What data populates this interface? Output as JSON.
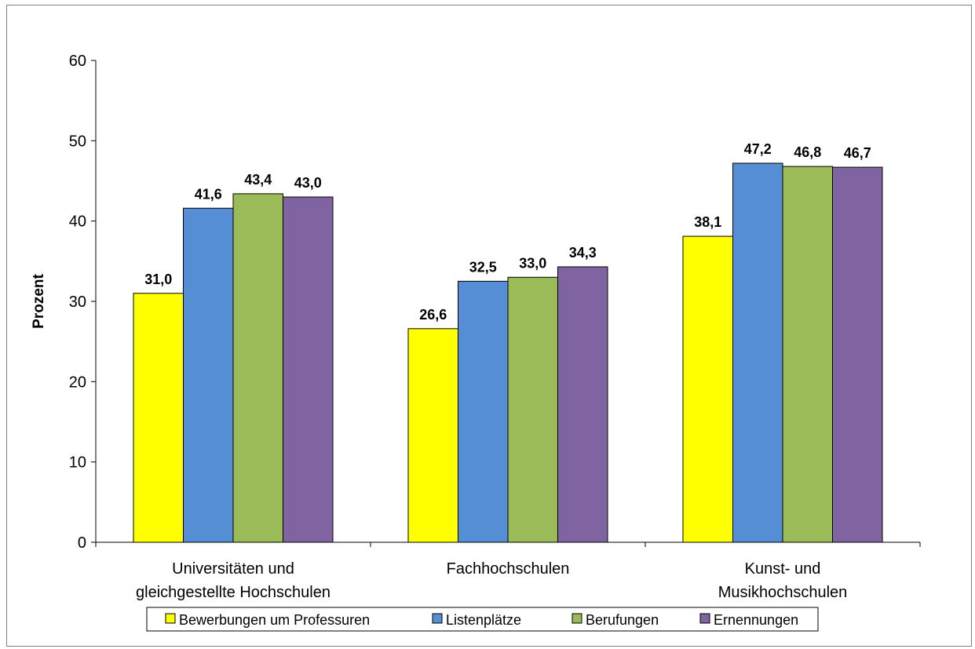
{
  "chart_data": {
    "type": "bar",
    "ylabel": "Prozent",
    "xlabel": "",
    "ylim": [
      0,
      60
    ],
    "yticks": [
      0,
      10,
      20,
      30,
      40,
      50,
      60
    ],
    "grid": false,
    "legend_position": "bottom",
    "categories": [
      [
        "Universitäten und",
        "gleichgestellte Hochschulen"
      ],
      [
        "Fachhochschulen"
      ],
      [
        "Kunst- und",
        "Musikhochschulen"
      ]
    ],
    "series": [
      {
        "name": "Bewerbungen um Professuren",
        "color": "#FFFF00",
        "values": [
          31.0,
          26.6,
          38.1
        ],
        "labels": [
          "31,0",
          "26,6",
          "38,1"
        ]
      },
      {
        "name": "Listenplätze",
        "color": "#558ED5",
        "values": [
          41.6,
          32.5,
          47.2
        ],
        "labels": [
          "41,6",
          "32,5",
          "47,2"
        ]
      },
      {
        "name": "Berufungen",
        "color": "#9BBB59",
        "values": [
          43.4,
          33.0,
          46.8
        ],
        "labels": [
          "43,4",
          "33,0",
          "46,8"
        ]
      },
      {
        "name": "Ernennungen",
        "color": "#8064A2",
        "values": [
          43.0,
          34.3,
          46.7
        ],
        "labels": [
          "43,0",
          "34,3",
          "46,7"
        ]
      }
    ]
  }
}
